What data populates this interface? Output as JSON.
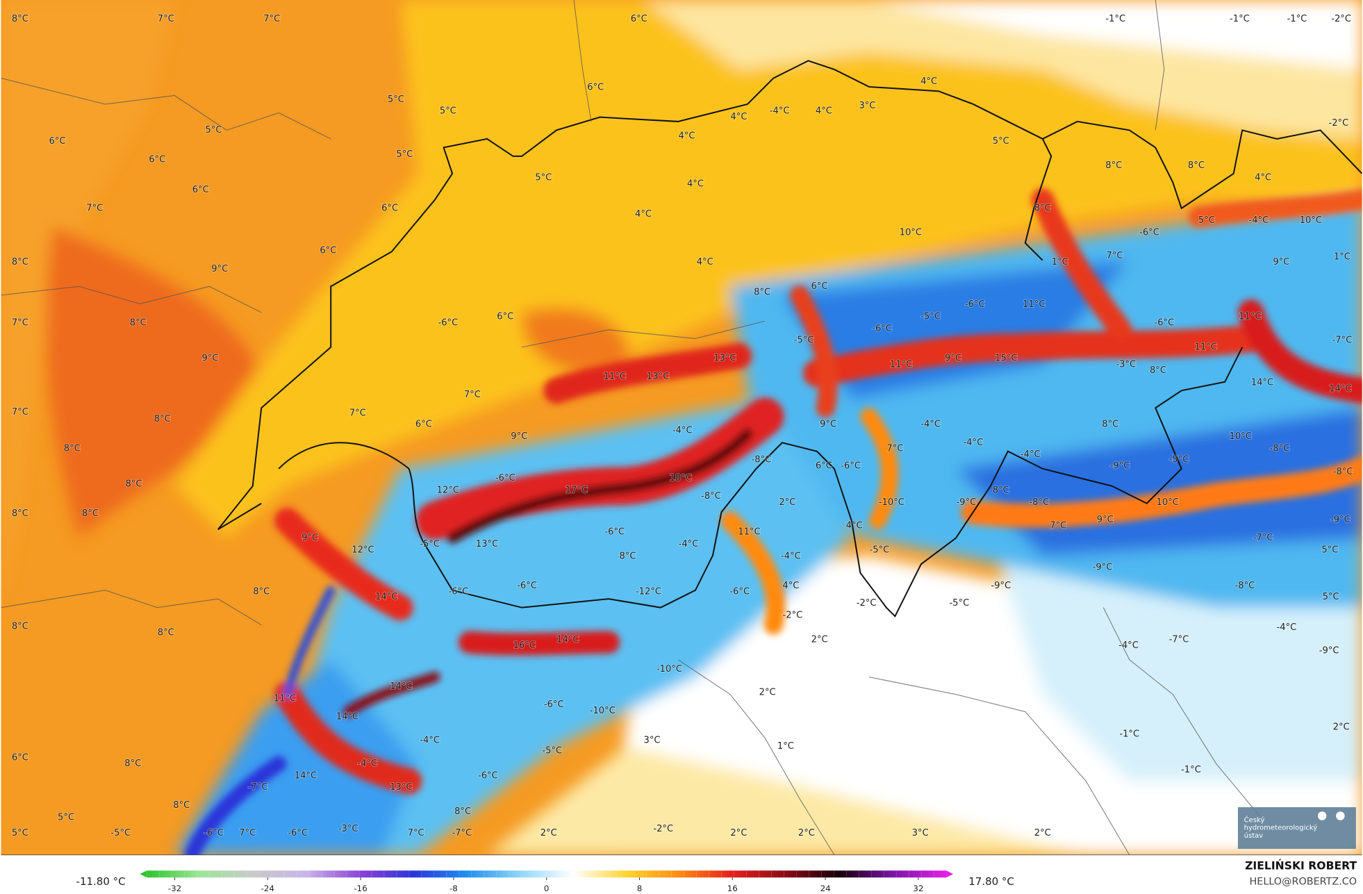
{
  "map": {
    "temperature_labels": [
      "8°C",
      "7°C",
      "7°C",
      "6°C",
      "-1°C",
      "-1°C",
      "-1°C",
      "-2°C",
      "6°C",
      "5°C",
      "5°C",
      "4°C",
      "4°C",
      "-4°C",
      "4°C",
      "3°C",
      "6°C",
      "5°C",
      "5°C",
      "4°C",
      "5°C",
      "-2°C",
      "6°C",
      "5°C",
      "4°C",
      "8°C",
      "8°C",
      "4°C",
      "6°C",
      "7°C",
      "6°C",
      "4°C",
      "8°C",
      "-6°C",
      "5°C",
      "-4°C",
      "10°C",
      "8°C",
      "6°C",
      "9°C",
      "4°C",
      "10°C",
      "1°C",
      "7°C",
      "9°C",
      "1°C",
      "8°C",
      "6°C",
      "7°C",
      "8°C",
      "-6°C",
      "6°C",
      "-6°C",
      "-5°C",
      "-6°C",
      "11°C",
      "-6°C",
      "11°C",
      "-5°C",
      "9°C",
      "13°C",
      "11°C",
      "9°C",
      "15°C",
      "-3°C",
      "11°C",
      "-7°C",
      "11°C",
      "13°C",
      "8°C",
      "14°C",
      "14°C",
      "7°C",
      "7°C",
      "7°C",
      "8°C",
      "6°C",
      "9°C",
      "-4°C",
      "8°C",
      "-4°C",
      "9°C",
      "7°C",
      "-4°C",
      "-4°C",
      "10°C",
      "8°C",
      "-8°C",
      "-8°C",
      "6°C",
      "-6°C",
      "-9°C",
      "-5°C",
      "8°C",
      "-6°C",
      "18°C",
      "-8°C",
      "12°C",
      "17°C",
      "-8°C",
      "2°C",
      "-10°C",
      "-9°C",
      "8°C",
      "-8°C",
      "10°C",
      "8°C",
      "8°C",
      "7°C",
      "9°C",
      "-9°C",
      "9°C",
      "13°C",
      "-6°C",
      "11°C",
      "4°C",
      "12°C",
      "-5°C",
      "-4°C",
      "-5°C",
      "-7°C",
      "-4°C",
      "8°C",
      "5°C",
      "-9°C",
      "-6°C",
      "-6°C",
      "-12°C",
      "-6°C",
      "4°C",
      "-9°C",
      "-8°C",
      "8°C",
      "14°C",
      "-2°C",
      "-5°C",
      "5°C",
      "-2°C",
      "8°C",
      "8°C",
      "-4°C",
      "14°C",
      "2°C",
      "-7°C",
      "16°C",
      "-4°C",
      "-9°C",
      "-10°C",
      "14°C",
      "2°C",
      "11°C",
      "-6°C",
      "-10°C",
      "14°C",
      "-1°C",
      "2°C",
      "-4°C",
      "3°C",
      "1°C",
      "-5°C",
      "6°C",
      "8°C",
      "-4°C",
      "-1°C",
      "14°C",
      "-6°C",
      "-7°C",
      "13°C",
      "8°C",
      "8°C",
      "5°C",
      "5°C",
      "-5°C",
      "-6°C",
      "7°C",
      "-6°C",
      "-3°C",
      "7°C",
      "-7°C",
      "2°C",
      "-2°C",
      "2°C",
      "2°C",
      "3°C",
      "2°C"
    ]
  },
  "colorbar": {
    "min_label": "-11.80 °C",
    "max_label": "17.80 °C",
    "xlim": [
      -35,
      35
    ],
    "xticks": [
      -32,
      -24,
      -16,
      -8,
      0,
      8,
      16,
      24,
      32
    ],
    "colors": [
      "#2fc42f",
      "#9ee59a",
      "#c9c9c9",
      "#c8b5ea",
      "#8c43d6",
      "#2a36d8",
      "#1e8ef0",
      "#8fd6f7",
      "#ffffff",
      "#ffd530",
      "#ff8a10",
      "#e41e1e",
      "#8a0a14",
      "#150008",
      "#7a14a8",
      "#e61ee6"
    ]
  },
  "credit": {
    "author": "ZIELIŃSKI ROBERT",
    "contact": "HELLO@ROBERTZ.CO",
    "logo": "Český hydrometeorologický ústav"
  }
}
